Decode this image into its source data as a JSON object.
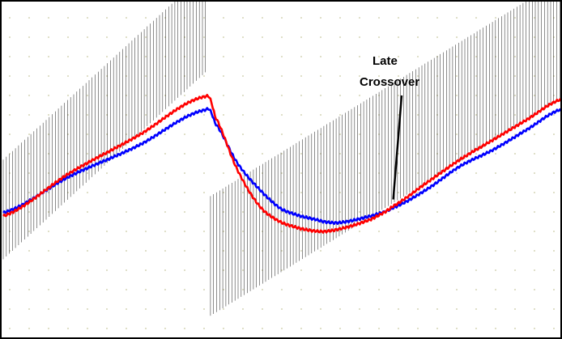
{
  "chart_data": {
    "type": "line",
    "title": "",
    "xlabel": "",
    "ylabel": "",
    "x_range": [
      0,
      100
    ],
    "y_range": [
      0,
      100
    ],
    "grid": "dotted",
    "legend": "none",
    "annotation": {
      "text_lines": [
        "Late",
        "Crossover"
      ],
      "points_to": {
        "x": 70,
        "y": 41
      }
    },
    "ramps": [
      {
        "name": "",
        "color": "#000000",
        "x_start": 0,
        "x_end": 36.8,
        "y_start": 38,
        "y_end": 95,
        "band": 30,
        "spacing": 0.55
      },
      {
        "name": "",
        "color": "#000000",
        "x_start": 37.2,
        "x_end": 100,
        "y_start": 24,
        "y_end": 89,
        "band": 36,
        "spacing": 0.55
      }
    ],
    "series": [
      {
        "name": "",
        "color": "#0000ff",
        "points": [
          [
            0,
            37
          ],
          [
            12,
            48
          ],
          [
            24,
            57
          ],
          [
            36.5,
            68
          ],
          [
            38,
            64
          ],
          [
            42,
            52
          ],
          [
            46,
            44
          ],
          [
            50,
            38
          ],
          [
            56,
            35
          ],
          [
            60,
            34
          ],
          [
            66,
            36
          ],
          [
            70,
            38.5
          ],
          [
            76,
            44
          ],
          [
            82,
            51
          ],
          [
            88,
            56
          ],
          [
            94,
            62
          ],
          [
            100,
            68
          ]
        ]
      },
      {
        "name": "",
        "color": "#ff0000",
        "points": [
          [
            0,
            36
          ],
          [
            12,
            49
          ],
          [
            24,
            60
          ],
          [
            36.5,
            72
          ],
          [
            38,
            66
          ],
          [
            42,
            50
          ],
          [
            46,
            39
          ],
          [
            50,
            34
          ],
          [
            56,
            31.5
          ],
          [
            60,
            32
          ],
          [
            66,
            35
          ],
          [
            70,
            39
          ],
          [
            76,
            46
          ],
          [
            82,
            53
          ],
          [
            88,
            59
          ],
          [
            94,
            65
          ],
          [
            100,
            71
          ]
        ]
      }
    ]
  },
  "colors": {
    "grid_dot": "#c8c8a0",
    "ramp_line": "#000000",
    "annotation": "#000000",
    "frame": "#000000",
    "background": "#ffffff"
  }
}
